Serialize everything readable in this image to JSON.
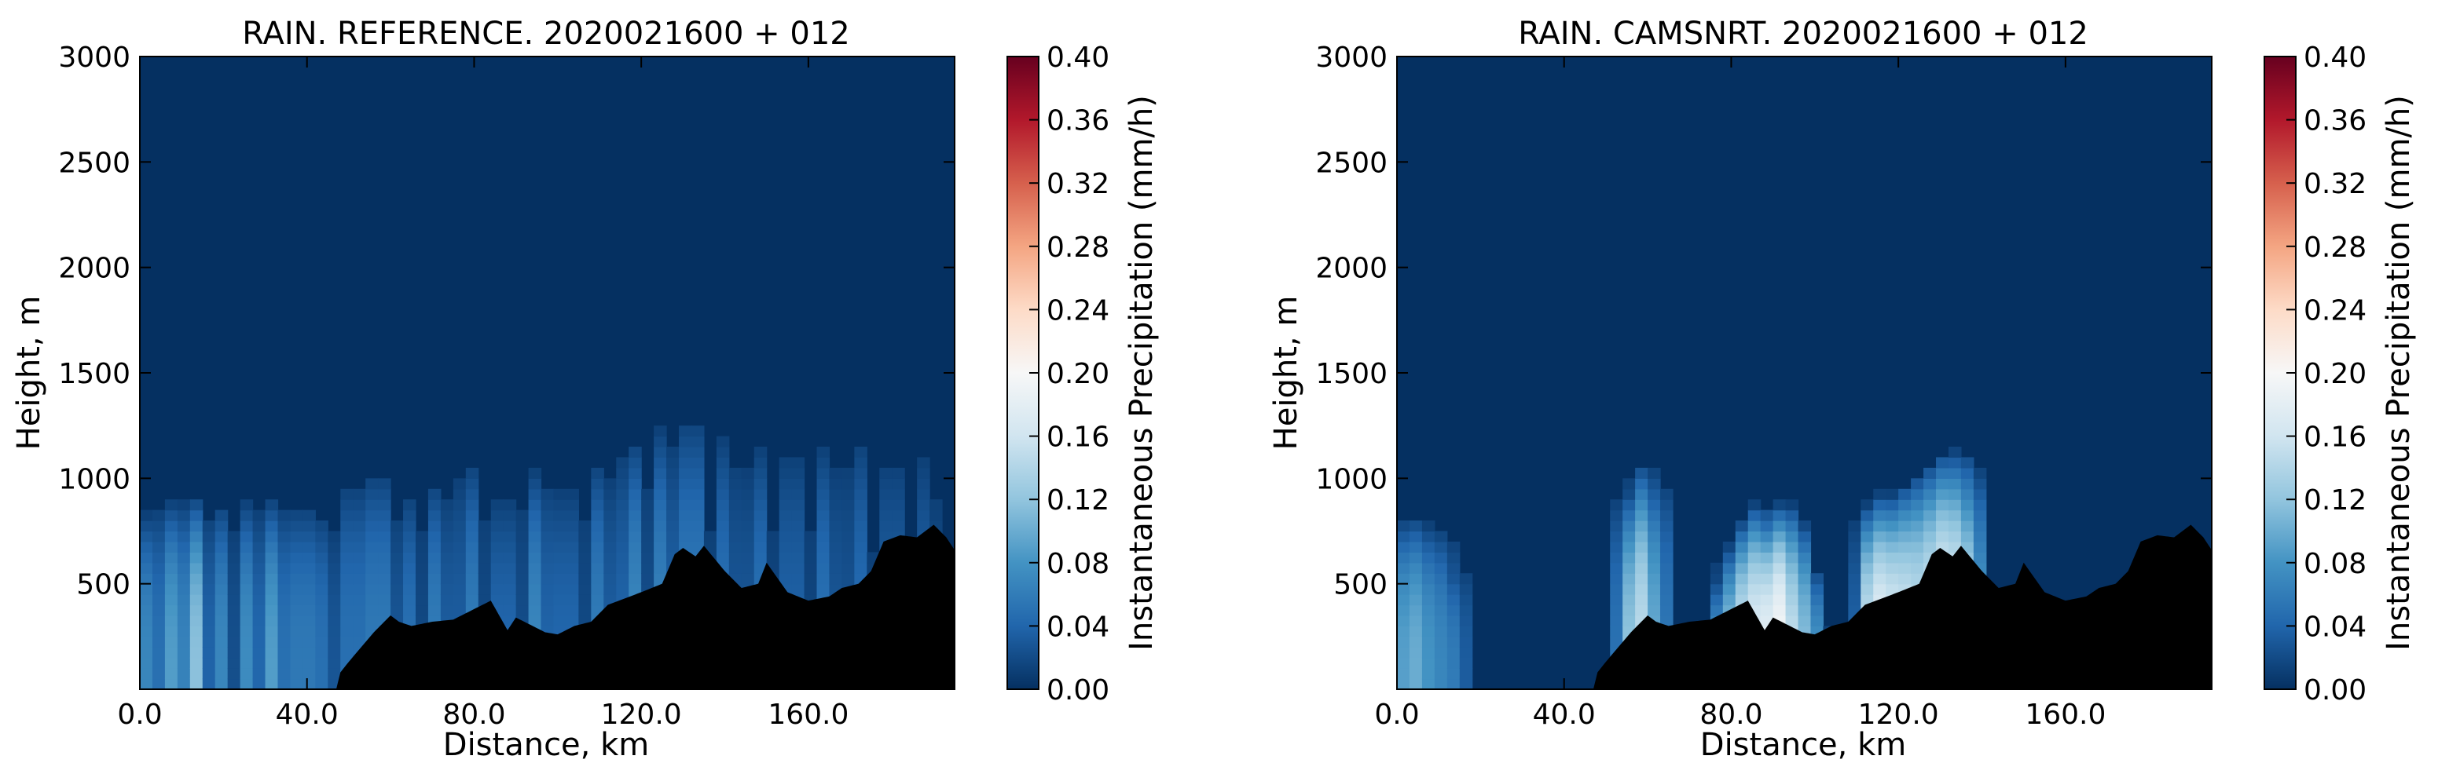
{
  "colorbar": {
    "label": "Instantaneous Precipitation (mm/h)",
    "ticks": [
      "0.00",
      "0.04",
      "0.08",
      "0.12",
      "0.16",
      "0.20",
      "0.24",
      "0.28",
      "0.32",
      "0.36",
      "0.40"
    ],
    "colormap": [
      "#053061",
      "#2166ac",
      "#4393c3",
      "#92c5de",
      "#d1e5f0",
      "#f7f7f7",
      "#fddbc7",
      "#f4a582",
      "#d6604d",
      "#b2182b",
      "#67001f"
    ],
    "range": [
      0,
      0.4
    ]
  },
  "terrain_color": "#000000",
  "chart_data": [
    {
      "type": "heatmap",
      "title": "RAIN. REFERENCE. 2020021600 + 012",
      "xlabel": "Distance, km",
      "ylabel": "Height, m",
      "xlim": [
        0,
        195
      ],
      "ylim": [
        0,
        3000
      ],
      "xticks": [
        "0.0",
        "40.0",
        "80.0",
        "120.0",
        "160.0"
      ],
      "yticks": [
        "500",
        "1000",
        "1500",
        "2000",
        "2500",
        "3000"
      ],
      "background_value": 0.0,
      "terrain": {
        "x": [
          0,
          47,
          48,
          50,
          53,
          56,
          60,
          62,
          65,
          70,
          75,
          80,
          84,
          86,
          88,
          90,
          93,
          97,
          100,
          104,
          108,
          112,
          116,
          120,
          125,
          128,
          130,
          133,
          135,
          140,
          144,
          148,
          150,
          155,
          160,
          165,
          168,
          172,
          175,
          178,
          182,
          186,
          190,
          193,
          195
        ],
        "height": [
          0,
          0,
          80,
          130,
          200,
          270,
          350,
          320,
          300,
          320,
          330,
          380,
          420,
          350,
          280,
          340,
          310,
          270,
          260,
          300,
          320,
          400,
          430,
          460,
          500,
          640,
          670,
          630,
          680,
          560,
          480,
          500,
          600,
          460,
          420,
          440,
          480,
          500,
          560,
          700,
          730,
          720,
          780,
          720,
          660
        ]
      },
      "rain_cells": [
        {
          "x": 2,
          "top": 880,
          "peak": 0.07
        },
        {
          "x": 7,
          "top": 930,
          "peak": 0.09
        },
        {
          "x": 13,
          "top": 940,
          "peak": 0.12
        },
        {
          "x": 19,
          "top": 930,
          "peak": 0.07
        },
        {
          "x": 26,
          "top": 940,
          "peak": 0.075
        },
        {
          "x": 32,
          "top": 940,
          "peak": 0.09
        },
        {
          "x": 39,
          "top": 930,
          "peak": 0.07
        },
        {
          "x": 44,
          "top": 900,
          "peak": 0.05
        },
        {
          "x": 51,
          "top": 1050,
          "peak": 0.06
        },
        {
          "x": 57,
          "top": 1100,
          "peak": 0.07
        },
        {
          "x": 64,
          "top": 1000,
          "peak": 0.05
        },
        {
          "x": 71,
          "top": 1050,
          "peak": 0.06
        },
        {
          "x": 79,
          "top": 1150,
          "peak": 0.06
        },
        {
          "x": 87,
          "top": 1000,
          "peak": 0.05
        },
        {
          "x": 95,
          "top": 1100,
          "peak": 0.07
        },
        {
          "x": 102,
          "top": 1050,
          "peak": 0.05
        },
        {
          "x": 110,
          "top": 1150,
          "peak": 0.06
        },
        {
          "x": 118,
          "top": 1250,
          "peak": 0.07
        },
        {
          "x": 125,
          "top": 1320,
          "peak": 0.065
        },
        {
          "x": 132,
          "top": 1380,
          "peak": 0.07
        },
        {
          "x": 140,
          "top": 1300,
          "peak": 0.05
        },
        {
          "x": 148,
          "top": 1250,
          "peak": 0.05
        },
        {
          "x": 156,
          "top": 1250,
          "peak": 0.045
        },
        {
          "x": 164,
          "top": 1250,
          "peak": 0.05
        },
        {
          "x": 172,
          "top": 1300,
          "peak": 0.045
        },
        {
          "x": 180,
          "top": 1250,
          "peak": 0.04
        },
        {
          "x": 188,
          "top": 1250,
          "peak": 0.035
        }
      ]
    },
    {
      "type": "heatmap",
      "title": "RAIN. CAMSNRT. 2020021600 + 012",
      "xlabel": "Distance, km",
      "ylabel": "Height, m",
      "xlim": [
        0,
        195
      ],
      "ylim": [
        0,
        3000
      ],
      "xticks": [
        "0.0",
        "40.0",
        "80.0",
        "120.0",
        "160.0"
      ],
      "yticks": [
        "500",
        "1000",
        "1500",
        "2000",
        "2500",
        "3000"
      ],
      "background_value": 0.0,
      "terrain": {
        "x": [
          0,
          47,
          48,
          50,
          53,
          56,
          60,
          62,
          65,
          70,
          75,
          80,
          84,
          86,
          88,
          90,
          93,
          97,
          100,
          104,
          108,
          112,
          116,
          120,
          125,
          128,
          130,
          133,
          135,
          140,
          144,
          148,
          150,
          155,
          160,
          165,
          168,
          172,
          175,
          178,
          182,
          186,
          190,
          193,
          195
        ],
        "height": [
          0,
          0,
          80,
          130,
          200,
          270,
          350,
          320,
          300,
          320,
          330,
          380,
          420,
          350,
          280,
          340,
          310,
          270,
          260,
          300,
          320,
          400,
          430,
          460,
          500,
          640,
          670,
          630,
          680,
          560,
          480,
          500,
          600,
          460,
          420,
          440,
          480,
          500,
          560,
          700,
          730,
          720,
          780,
          720,
          660
        ]
      },
      "rain_cells": [
        {
          "x": 1.5,
          "top": 840,
          "peak": 0.09
        },
        {
          "x": 4.5,
          "top": 850,
          "peak": 0.1
        },
        {
          "x": 7.5,
          "top": 820,
          "peak": 0.08
        },
        {
          "x": 11,
          "top": 800,
          "peak": 0.07
        },
        {
          "x": 14,
          "top": 650,
          "peak": 0.06
        },
        {
          "x": 55.5,
          "top": 980,
          "peak": 0.12
        },
        {
          "x": 59,
          "top": 1100,
          "peak": 0.15
        },
        {
          "x": 62,
          "top": 1050,
          "peak": 0.1
        },
        {
          "x": 78,
          "top": 550,
          "peak": 0.1
        },
        {
          "x": 80.5,
          "top": 700,
          "peak": 0.13
        },
        {
          "x": 83.5,
          "top": 820,
          "peak": 0.17
        },
        {
          "x": 86.5,
          "top": 900,
          "peak": 0.19
        },
        {
          "x": 89.5,
          "top": 850,
          "peak": 0.2
        },
        {
          "x": 92.5,
          "top": 900,
          "peak": 0.22
        },
        {
          "x": 95.5,
          "top": 820,
          "peak": 0.17
        },
        {
          "x": 99,
          "top": 600,
          "peak": 0.1
        },
        {
          "x": 113.5,
          "top": 900,
          "peak": 0.17
        },
        {
          "x": 116.5,
          "top": 950,
          "peak": 0.2
        },
        {
          "x": 119.5,
          "top": 950,
          "peak": 0.19
        },
        {
          "x": 122.5,
          "top": 1000,
          "peak": 0.18
        },
        {
          "x": 125.5,
          "top": 1050,
          "peak": 0.17
        },
        {
          "x": 128.5,
          "top": 1100,
          "peak": 0.18
        },
        {
          "x": 131.5,
          "top": 1150,
          "peak": 0.2
        },
        {
          "x": 134.5,
          "top": 1160,
          "peak": 0.19
        },
        {
          "x": 137,
          "top": 1100,
          "peak": 0.15
        }
      ]
    }
  ]
}
